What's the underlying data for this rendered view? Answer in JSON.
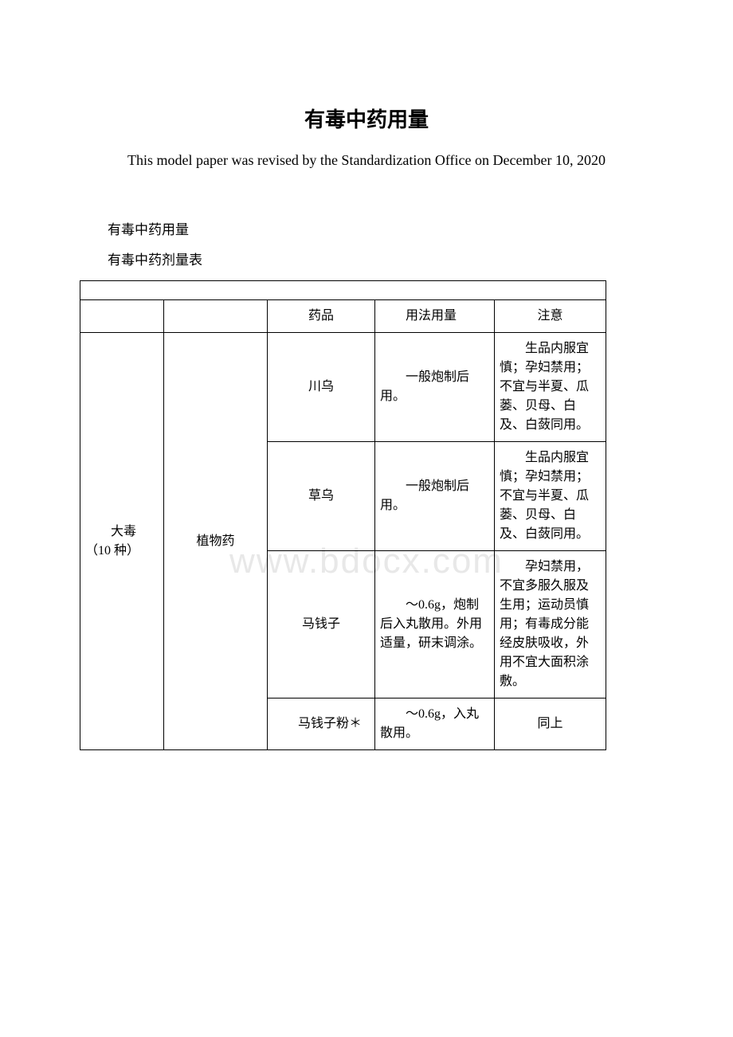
{
  "title": "有毒中药用量",
  "subtitle_en": "This model paper was revised by the Standardization Office on December 10, 2020",
  "intro1": "有毒中药用量",
  "intro2": "有毒中药剂量表",
  "watermark": "www.bdocx.com",
  "table": {
    "headers": {
      "col3": "药品",
      "col4": "用法用量",
      "col5": "注意"
    },
    "category": "大毒（10 种）",
    "subcategory": "植物药",
    "rows": [
      {
        "drug": "川乌",
        "usage": "一般炮制后用。",
        "note": "生品内服宜慎；孕妇禁用；不宜与半夏、瓜蒌、贝母、白及、白蔹同用。"
      },
      {
        "drug": "草乌",
        "usage": "一般炮制后用。",
        "note": "生品内服宜慎；孕妇禁用；不宜与半夏、瓜蒌、贝母、白及、白蔹同用。"
      },
      {
        "drug": "马钱子",
        "usage": "～0.6g，炮制后入丸散用。外用适量，研末调涂。",
        "note": "孕妇禁用，不宜多服久服及生用；运动员慎用；有毒成分能经皮肤吸收，外用不宜大面积涂敷。"
      },
      {
        "drug": "马钱子粉＊",
        "usage": "～0.6g，入丸散用。",
        "note": "同上"
      }
    ]
  }
}
